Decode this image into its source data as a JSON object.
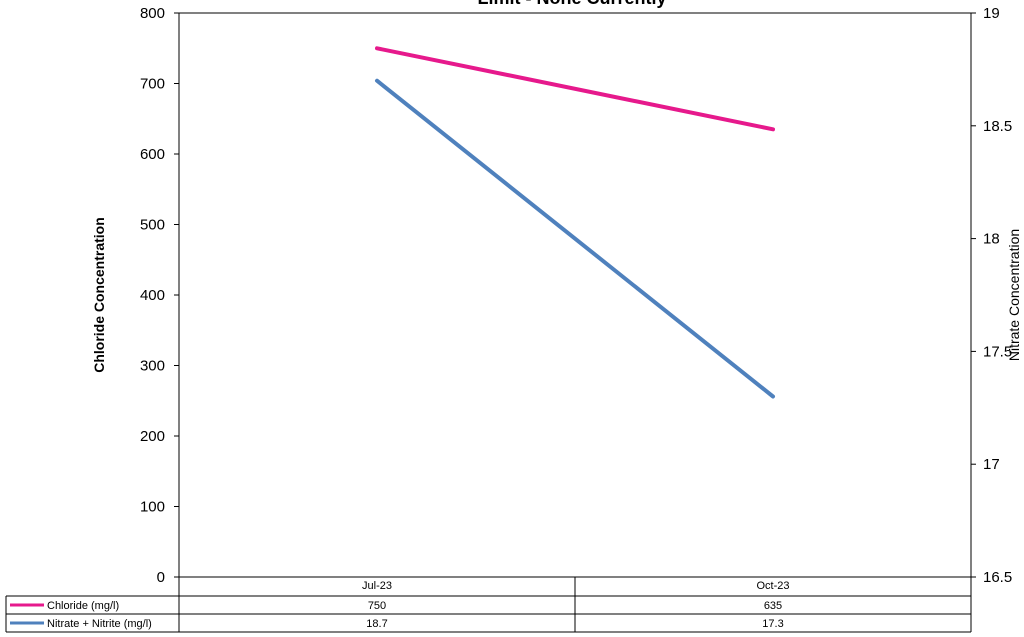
{
  "chart_data": {
    "type": "line",
    "title": "Limit - None Currently",
    "categories": [
      "Jul-23",
      "Oct-23"
    ],
    "y_left": {
      "label": "Chloride Concentration",
      "ylim": [
        0,
        800
      ],
      "ticks": [
        0,
        100,
        200,
        300,
        400,
        500,
        600,
        700,
        800
      ]
    },
    "y_right": {
      "label": "Nitrate Concentration",
      "ylim": [
        16.5,
        19
      ],
      "ticks": [
        16.5,
        17,
        17.5,
        18,
        18.5,
        19
      ]
    },
    "series": [
      {
        "name": "Chloride (mg/l)",
        "axis": "left",
        "color": "#e6198c",
        "values": [
          750,
          635
        ],
        "display": [
          "750",
          "635"
        ]
      },
      {
        "name": "Nitrate + Nitrite (mg/l)",
        "axis": "right",
        "color": "#4f81bd",
        "values": [
          18.7,
          17.3
        ],
        "display": [
          "18.7",
          "17.3"
        ]
      }
    ],
    "grid": false,
    "legend": "data-table-bottom"
  }
}
